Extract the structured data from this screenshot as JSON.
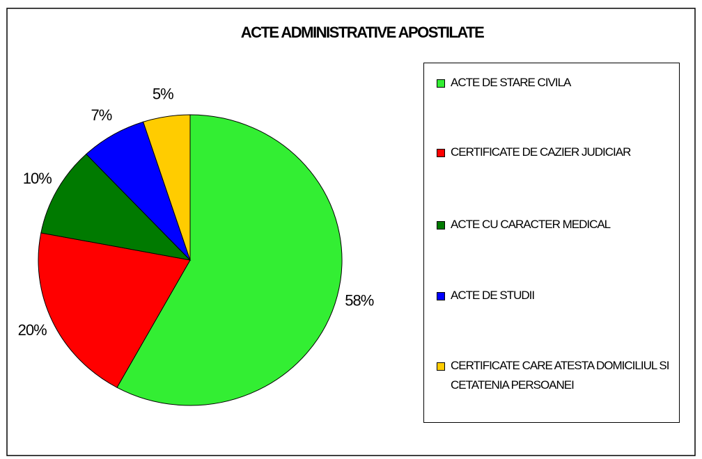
{
  "chart_data": {
    "type": "pie",
    "title": "ACTE ADMINISTRATIVE APOSTILATE",
    "categories": [
      "ACTE DE STARE CIVILA",
      "CERTIFICATE DE CAZIER JUDICIAR",
      "ACTE CU CARACTER MEDICAL",
      "ACTE DE STUDII",
      "CERTIFICATE CARE ATESTA DOMICILIUL SI CETATENIA PERSOANEI"
    ],
    "values": [
      58,
      20,
      10,
      7,
      5
    ],
    "value_labels": [
      "58%",
      "20%",
      "10%",
      "7%",
      "5%"
    ],
    "colors": [
      "#33ee33",
      "#ff0000",
      "#007a00",
      "#0000ff",
      "#ffcc00"
    ],
    "legend": "right"
  }
}
